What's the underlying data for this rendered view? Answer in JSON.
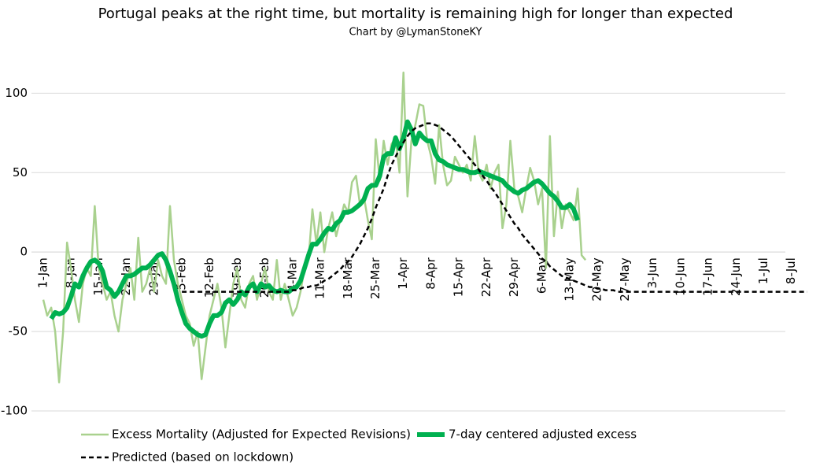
{
  "chart_data": {
    "type": "line",
    "title": "Portugal peaks at the right time, but mortality is remaining high for longer than expected",
    "subtitle": "Chart by @LymanStoneKY",
    "categories": [
      "1-Jan",
      null,
      null,
      null,
      null,
      null,
      null,
      "8-Jan",
      null,
      null,
      null,
      null,
      null,
      null,
      "15-Jan",
      null,
      null,
      null,
      null,
      null,
      null,
      "22-Jan",
      null,
      null,
      null,
      null,
      null,
      null,
      "29-Jan",
      null,
      null,
      null,
      null,
      null,
      null,
      "5-Feb",
      null,
      null,
      null,
      null,
      null,
      null,
      "12-Feb",
      null,
      null,
      null,
      null,
      null,
      null,
      "19-Feb",
      null,
      null,
      null,
      null,
      null,
      null,
      "26-Feb",
      null,
      null,
      null,
      null,
      null,
      null,
      "4-Mar",
      null,
      null,
      null,
      null,
      null,
      null,
      "11-Mar",
      null,
      null,
      null,
      null,
      null,
      null,
      "18-Mar",
      null,
      null,
      null,
      null,
      null,
      null,
      "25-Mar",
      null,
      null,
      null,
      null,
      null,
      null,
      "1-Apr",
      null,
      null,
      null,
      null,
      null,
      null,
      "8-Apr",
      null,
      null,
      null,
      null,
      null,
      null,
      "15-Apr",
      null,
      null,
      null,
      null,
      null,
      null,
      "22-Apr",
      null,
      null,
      null,
      null,
      null,
      null,
      "29-Apr",
      null,
      null,
      null,
      null,
      null,
      null,
      "6-May",
      null,
      null,
      null,
      null,
      null,
      null,
      "13-May",
      null,
      null,
      null,
      null,
      null,
      null,
      "20-May",
      null,
      null,
      null,
      null,
      null,
      null,
      "27-May",
      null,
      null,
      null,
      null,
      null,
      null,
      "3-Jun",
      null,
      null,
      null,
      null,
      null,
      null,
      "10-Jun",
      null,
      null,
      null,
      null,
      null,
      null,
      "17-Jun",
      null,
      null,
      null,
      null,
      null,
      null,
      "24-Jun",
      null,
      null,
      null,
      null,
      null,
      null,
      "1-Jul",
      null,
      null,
      null,
      null,
      null,
      null,
      "8-Jul",
      null,
      null,
      null,
      null
    ],
    "series": [
      {
        "name": "Excess Mortality (Adjusted for Expected Revisions)",
        "color": "#a9d18e",
        "line_style": "solid",
        "values": [
          -30,
          -40,
          -35,
          -50,
          -82,
          -50,
          6,
          -10,
          -30,
          -44,
          -20,
          -10,
          -15,
          29,
          -10,
          -20,
          -30,
          -25,
          -40,
          -50,
          -30,
          -20,
          -10,
          -30,
          9,
          -25,
          -20,
          -10,
          -25,
          -5,
          -15,
          -20,
          29,
          -5,
          -20,
          -30,
          -40,
          -45,
          -59,
          -50,
          -80,
          -60,
          -40,
          -30,
          -20,
          -35,
          -60,
          -40,
          -20,
          -10,
          -30,
          -35,
          -20,
          -15,
          -30,
          -20,
          -10,
          -25,
          -30,
          -5,
          -30,
          -20,
          -30,
          -40,
          -35,
          -25,
          -10,
          -5,
          27,
          5,
          25,
          0,
          15,
          25,
          10,
          20,
          30,
          25,
          44,
          48,
          30,
          35,
          20,
          8,
          71,
          45,
          70,
          55,
          68,
          72,
          50,
          113,
          35,
          70,
          80,
          93,
          92,
          70,
          60,
          43,
          80,
          55,
          42,
          45,
          60,
          55,
          50,
          55,
          45,
          73,
          50,
          45,
          55,
          40,
          50,
          55,
          15,
          30,
          70,
          40,
          35,
          25,
          40,
          53,
          45,
          30,
          40,
          -10,
          73,
          10,
          38,
          15,
          30,
          25,
          20,
          40,
          -2,
          -5,
          null,
          null,
          null,
          null,
          null,
          null,
          null,
          null,
          null,
          null,
          null,
          null,
          null,
          null,
          null,
          null,
          null,
          null,
          null,
          null,
          null,
          null,
          null,
          null,
          null,
          null,
          null,
          null,
          null,
          null,
          null,
          null,
          null,
          null,
          null,
          null,
          null,
          null,
          null,
          null,
          null,
          null,
          null,
          null,
          null,
          null,
          null,
          null,
          null,
          null,
          null,
          null,
          null,
          null,
          null,
          null
        ]
      },
      {
        "name": "7-day centered adjusted excess",
        "color": "#00b050",
        "line_style": "solid",
        "values": [
          null,
          null,
          -42,
          -38,
          -39,
          -38,
          -35,
          -28,
          -20,
          -22,
          -15,
          -10,
          -6,
          -5,
          -7,
          -12,
          -22,
          -24,
          -28,
          -25,
          -20,
          -15,
          -15,
          -14,
          -12,
          -10,
          -10,
          -8,
          -5,
          -2,
          -1,
          -5,
          -12,
          -20,
          -30,
          -38,
          -45,
          -48,
          -50,
          -52,
          -53,
          -52,
          -45,
          -40,
          -40,
          -38,
          -32,
          -30,
          -33,
          -30,
          -25,
          -27,
          -22,
          -20,
          -25,
          -20,
          -22,
          -21,
          -24,
          -25,
          -24,
          -25,
          -25,
          -23,
          -22,
          -18,
          -10,
          -2,
          5,
          5,
          8,
          12,
          15,
          14,
          18,
          20,
          25,
          25,
          26,
          28,
          30,
          33,
          40,
          42,
          42,
          48,
          60,
          62,
          62,
          72,
          65,
          72,
          82,
          77,
          68,
          75,
          72,
          70,
          70,
          62,
          58,
          57,
          55,
          54,
          53,
          52,
          52,
          51,
          50,
          50,
          51,
          50,
          49,
          48,
          47,
          46,
          45,
          42,
          40,
          38,
          37,
          39,
          40,
          42,
          44,
          45,
          43,
          40,
          37,
          35,
          32,
          28,
          28,
          30,
          27,
          20,
          null,
          null,
          null,
          null,
          null,
          null,
          null,
          null,
          null,
          null,
          null,
          null,
          null,
          null,
          null,
          null,
          null,
          null,
          null,
          null,
          null,
          null,
          null,
          null,
          null,
          null,
          null,
          null,
          null,
          null,
          null,
          null,
          null,
          null,
          null,
          null,
          null,
          null,
          null,
          null,
          null,
          null,
          null,
          null,
          null,
          null,
          null,
          null,
          null,
          null,
          null,
          null,
          null,
          null,
          null,
          null,
          null,
          null
        ]
      },
      {
        "name": "Predicted (based on lockdown)",
        "color": "#000000",
        "line_style": "dashed",
        "values": [
          null,
          null,
          null,
          null,
          null,
          null,
          null,
          null,
          null,
          null,
          null,
          null,
          null,
          null,
          null,
          null,
          null,
          null,
          null,
          null,
          null,
          null,
          null,
          null,
          null,
          null,
          null,
          null,
          null,
          null,
          null,
          null,
          null,
          null,
          null,
          -25,
          -25,
          -25,
          -25,
          -25,
          -25,
          -25,
          -25,
          -25,
          -25,
          -25,
          -25,
          -25,
          -25,
          -25,
          -25,
          -25,
          -25,
          -25,
          -25,
          -25,
          -25,
          -25,
          -25,
          -25,
          -25,
          -25,
          -25,
          -24,
          -24,
          -23,
          -22,
          -22,
          -21,
          -21,
          -20,
          -18,
          -17,
          -15,
          -13,
          -11,
          -8,
          -6,
          -3,
          1,
          5,
          10,
          15,
          21,
          28,
          34,
          40,
          48,
          55,
          60,
          65,
          69,
          73,
          76,
          78,
          79,
          80,
          81,
          81,
          80,
          79,
          77,
          75,
          73,
          70,
          67,
          64,
          61,
          58,
          55,
          52,
          48,
          45,
          41,
          38,
          34,
          30,
          26,
          22,
          18,
          15,
          11,
          8,
          5,
          2,
          -1,
          -4,
          -6,
          -9,
          -11,
          -13,
          -15,
          -16,
          -17,
          -18,
          -19,
          -20,
          -21,
          -22,
          -22,
          -23,
          -23,
          -24,
          -24,
          -24,
          -25,
          -25,
          -25,
          -25,
          -25,
          -25,
          -25,
          -25,
          -25,
          -25,
          -25,
          -25,
          -25,
          -25,
          -25,
          -25,
          -25,
          -25,
          -25,
          -25,
          -25,
          -25,
          -25,
          -25,
          -25,
          -25,
          -25,
          -25,
          -25,
          -25,
          -25,
          -25,
          -25,
          -25,
          -25,
          -25,
          -25,
          -25,
          -25,
          -25,
          -25,
          -25,
          -25,
          -25,
          -25,
          -25,
          -25,
          -25,
          -25
        ]
      }
    ],
    "ylim": [
      -100,
      120
    ],
    "yticks": [
      -100,
      -50,
      0,
      50,
      100
    ],
    "grid": true
  }
}
